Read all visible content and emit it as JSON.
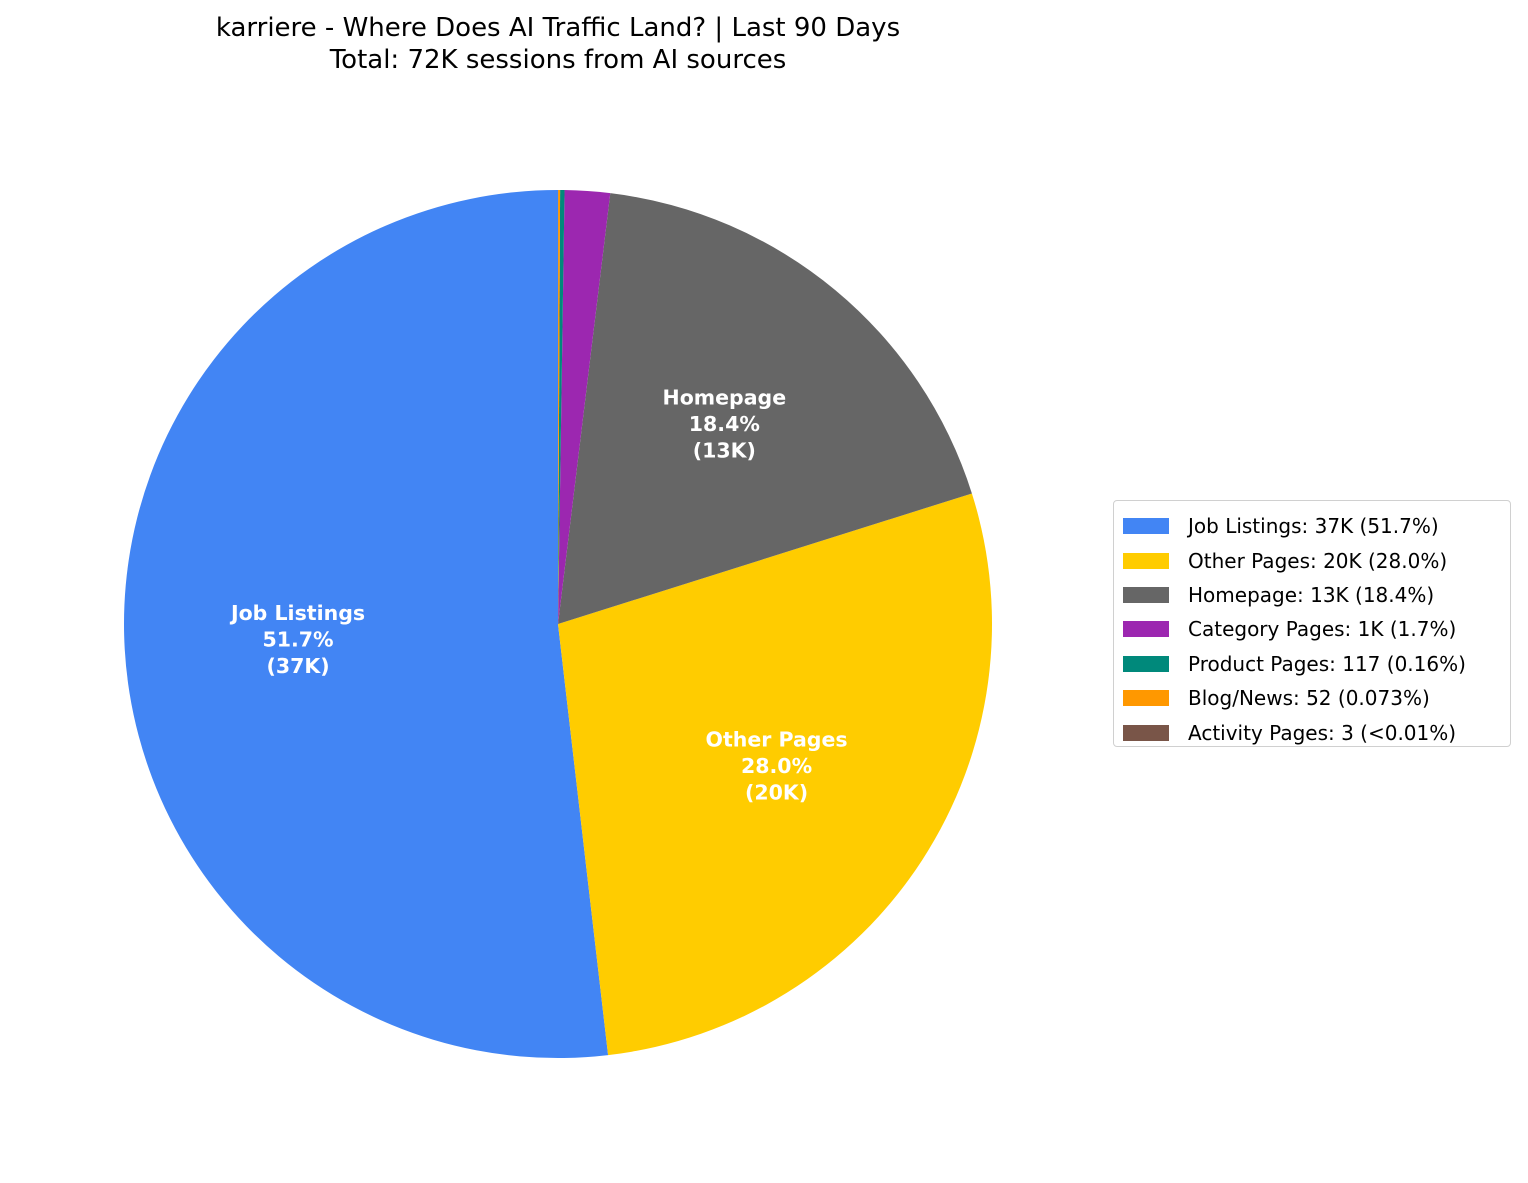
{
  "title": {
    "line1": "karriere - Where Does AI Traffic Land? | Last 90 Days",
    "line2": "Total: 72K sessions from AI sources"
  },
  "legend": {
    "items": [
      {
        "label": "Job Listings: 37K (51.7%)",
        "color": "#4285F4"
      },
      {
        "label": "Other Pages: 20K (28.0%)",
        "color": "#FFCC00"
      },
      {
        "label": "Homepage: 13K (18.4%)",
        "color": "#666666"
      },
      {
        "label": "Category Pages: 1K (1.7%)",
        "color": "#9C27B0"
      },
      {
        "label": "Product Pages: 117 (0.16%)",
        "color": "#00897B"
      },
      {
        "label": "Blog/News: 52 (0.073%)",
        "color": "#FF9800"
      },
      {
        "label": "Activity Pages: 3 (<0.01%)",
        "color": "#795548"
      }
    ]
  },
  "chart_data": {
    "type": "pie",
    "title": "karriere - Where Does AI Traffic Land? | Last 90 Days",
    "subtitle": "Total: 72K sessions from AI sources",
    "start_angle": 90,
    "direction": "counterclockwise",
    "categories": [
      "Job Listings",
      "Other Pages",
      "Homepage",
      "Category Pages",
      "Product Pages",
      "Blog/News",
      "Activity Pages"
    ],
    "values": [
      37000,
      20000,
      13000,
      1200,
      117,
      52,
      3
    ],
    "percentages": [
      51.7,
      28.0,
      18.4,
      1.7,
      0.16,
      0.073,
      0.004
    ],
    "colors": [
      "#4285F4",
      "#FFCC00",
      "#666666",
      "#9C27B0",
      "#00897B",
      "#FF9800",
      "#795548"
    ],
    "slice_labels": [
      {
        "name": "Job Listings",
        "pct": "51.7%",
        "value": "(37K)"
      },
      {
        "name": "Other Pages",
        "pct": "28.0%",
        "value": "(20K)"
      },
      {
        "name": "Homepage",
        "pct": "18.4%",
        "value": "(13K)"
      },
      null,
      null,
      null,
      null
    ],
    "legend_position": "right"
  }
}
